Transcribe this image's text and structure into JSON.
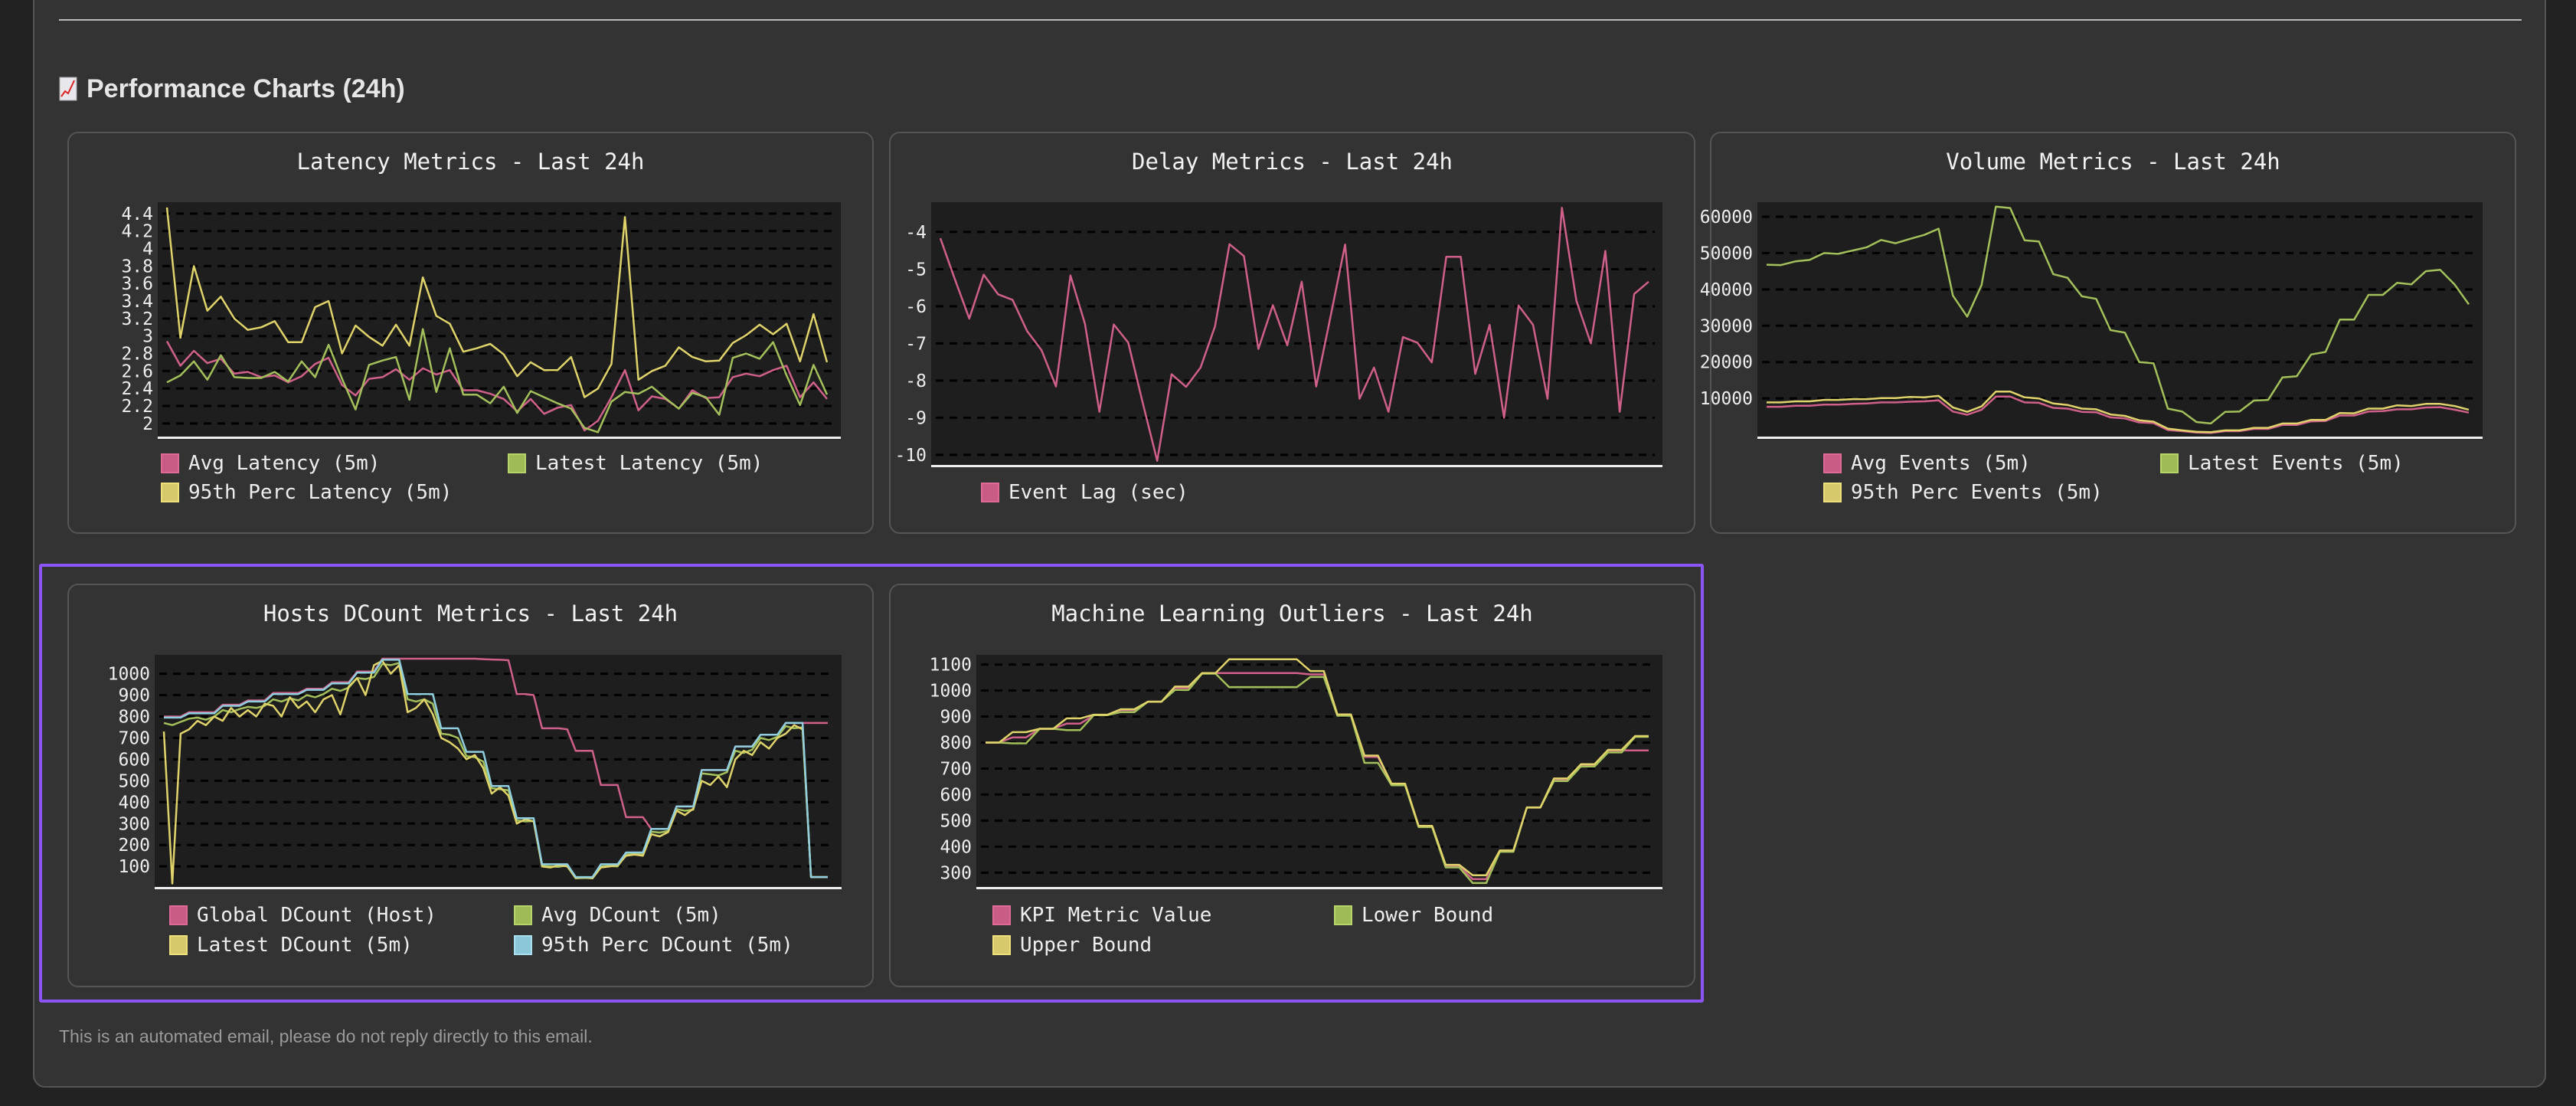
{
  "section": {
    "title": "Performance Charts (24h)",
    "icon": "chart-increasing-icon"
  },
  "footer": {
    "text": "This is an automated email, please do not reply directly to this email."
  },
  "colors": {
    "pink": "#d0608a",
    "green": "#a3c05a",
    "yellow": "#e0d36a",
    "blue": "#8fcfe0",
    "highlight": "#8b55f5"
  },
  "chart_data": [
    {
      "type": "line",
      "title": "Latency Metrics - Last 24h",
      "ylim": [
        1.85,
        4.53
      ],
      "yticks": [
        "2",
        "2.2",
        "2.4",
        "2.6",
        "2.8",
        "3",
        "3.2",
        "3.4",
        "3.6",
        "3.8",
        "4",
        "4.2",
        "4.4"
      ],
      "grid": true,
      "legend": "bottom",
      "series": [
        {
          "name": "Avg Latency (5m)",
          "color": "#d0608a",
          "values": [
            2.94,
            2.66,
            2.83,
            2.69,
            2.74,
            2.57,
            2.59,
            2.53,
            2.55,
            2.47,
            2.54,
            2.68,
            2.75,
            2.44,
            2.32,
            2.51,
            2.53,
            2.62,
            2.5,
            2.63,
            2.56,
            2.61,
            2.38,
            2.38,
            2.34,
            2.28,
            2.14,
            2.28,
            2.11,
            2.18,
            2.21,
            1.92,
            2.03,
            2.3,
            2.61,
            2.15,
            2.31,
            2.28,
            2.17,
            2.38,
            2.29,
            2.3,
            2.53,
            2.57,
            2.54,
            2.61,
            2.66,
            2.3,
            2.47,
            2.28
          ]
        },
        {
          "name": "Latest Latency (5m)",
          "color": "#a3c05a",
          "values": [
            2.47,
            2.55,
            2.71,
            2.5,
            2.78,
            2.53,
            2.52,
            2.52,
            2.59,
            2.48,
            2.71,
            2.53,
            2.9,
            2.51,
            2.16,
            2.67,
            2.72,
            2.76,
            2.27,
            3.08,
            2.36,
            2.86,
            2.33,
            2.33,
            2.23,
            2.42,
            2.12,
            2.37,
            2.3,
            2.23,
            2.17,
            1.95,
            1.9,
            2.25,
            2.36,
            2.34,
            2.42,
            2.29,
            2.17,
            2.35,
            2.3,
            2.1,
            2.75,
            2.8,
            2.74,
            2.93,
            2.55,
            2.21,
            2.67,
            2.33
          ]
        },
        {
          "name": "95th Perc Latency (5m)",
          "color": "#e0d36a",
          "values": [
            4.47,
            2.98,
            3.8,
            3.29,
            3.45,
            3.2,
            3.07,
            3.1,
            3.17,
            2.93,
            2.93,
            3.33,
            3.4,
            2.8,
            3.12,
            2.99,
            2.89,
            3.13,
            2.89,
            3.67,
            3.23,
            3.14,
            2.82,
            2.86,
            2.91,
            2.79,
            2.54,
            2.7,
            2.61,
            2.61,
            2.76,
            2.3,
            2.4,
            2.68,
            4.36,
            2.5,
            2.6,
            2.66,
            2.87,
            2.76,
            2.71,
            2.72,
            2.92,
            3.01,
            3.13,
            3.02,
            3.14,
            2.71,
            3.25,
            2.7
          ]
        }
      ]
    },
    {
      "type": "line",
      "title": "Delay Metrics - Last 24h",
      "ylim": [
        -10.27,
        -3.2
      ],
      "yticks": [
        "-10",
        "-9",
        "-8",
        "-7",
        "-6",
        "-5",
        "-4"
      ],
      "grid": true,
      "legend": "bottom",
      "series": [
        {
          "name": "Event Lag (sec)",
          "color": "#d0608a",
          "values": [
            -4.17,
            -5.27,
            -6.33,
            -5.15,
            -5.68,
            -5.83,
            -6.67,
            -7.18,
            -8.16,
            -5.17,
            -6.47,
            -8.84,
            -6.49,
            -6.98,
            -8.6,
            -10.16,
            -7.83,
            -8.17,
            -7.65,
            -6.54,
            -4.33,
            -4.65,
            -7.15,
            -5.97,
            -7.05,
            -5.34,
            -8.16,
            -6.26,
            -4.34,
            -8.49,
            -7.65,
            -8.84,
            -6.83,
            -6.98,
            -7.51,
            -4.67,
            -4.67,
            -7.82,
            -6.5,
            -9.0,
            -5.98,
            -6.5,
            -8.49,
            -3.35,
            -5.85,
            -7.0,
            -4.51,
            -8.84,
            -5.67,
            -5.34
          ]
        }
      ]
    },
    {
      "type": "line",
      "title": "Volume Metrics - Last 24h",
      "ylim": [
        -500,
        64000
      ],
      "yticks": [
        "10000",
        "20000",
        "30000",
        "40000",
        "50000",
        "60000"
      ],
      "grid": true,
      "legend": "bottom",
      "series": [
        {
          "name": "Avg Events (5m)",
          "color": "#d0608a",
          "values": [
            7700,
            7700,
            8000,
            8000,
            8300,
            8300,
            8500,
            8600,
            8900,
            8900,
            9100,
            9200,
            9500,
            6400,
            5500,
            6900,
            10500,
            10500,
            8900,
            8800,
            7400,
            7200,
            6300,
            6200,
            4800,
            4500,
            3400,
            3200,
            1300,
            1000,
            600,
            500,
            1000,
            1000,
            1600,
            1600,
            2700,
            2700,
            3700,
            3800,
            5300,
            5300,
            6400,
            6500,
            7000,
            7000,
            7500,
            7600,
            6900,
            6100
          ]
        },
        {
          "name": "Latest Events (5m)",
          "color": "#a3c05a",
          "values": [
            46800,
            46700,
            47700,
            48100,
            50000,
            49800,
            50700,
            51600,
            53600,
            52700,
            53900,
            55000,
            56700,
            38300,
            32500,
            41200,
            62800,
            62400,
            53500,
            53200,
            44200,
            43200,
            38100,
            37400,
            28800,
            28100,
            20000,
            19700,
            7200,
            6400,
            3500,
            3100,
            6300,
            6400,
            9400,
            9600,
            15800,
            16100,
            22100,
            22800,
            31700,
            31700,
            38500,
            38500,
            41800,
            41400,
            45000,
            45400,
            41400,
            35900
          ]
        },
        {
          "name": "95th Perc Events (5m)",
          "color": "#e0d36a",
          "values": [
            8900,
            8900,
            9200,
            9200,
            9600,
            9600,
            9800,
            9800,
            10100,
            10100,
            10400,
            10300,
            10700,
            7500,
            6300,
            7800,
            11900,
            11900,
            10300,
            10000,
            8600,
            8200,
            7200,
            7000,
            5600,
            5200,
            4000,
            3600,
            1700,
            1200,
            800,
            700,
            1200,
            1200,
            1900,
            1900,
            3100,
            3100,
            4100,
            4100,
            6000,
            5900,
            7200,
            7200,
            8100,
            7900,
            8500,
            8500,
            7900,
            6900
          ]
        }
      ]
    },
    {
      "type": "line",
      "title": "Hosts DCount Metrics - Last 24h",
      "ylim": [
        4,
        1088
      ],
      "yticks": [
        "100",
        "200",
        "300",
        "400",
        "500",
        "600",
        "700",
        "800",
        "900",
        "1000"
      ],
      "grid": true,
      "legend": "bottom",
      "series": [
        {
          "name": "Global DCount (Host)",
          "color": "#d0608a",
          "values": [
            800,
            800,
            800,
            820,
            820,
            820,
            820,
            855,
            855,
            855,
            875,
            875,
            875,
            910,
            910,
            910,
            910,
            930,
            930,
            930,
            960,
            960,
            960,
            1010,
            1010,
            1010,
            1070,
            1070,
            1070,
            1070,
            1070,
            1070,
            1070,
            1070,
            1070,
            1070,
            1070,
            1070,
            1068,
            1066,
            1065,
            1063,
            905,
            905,
            900,
            745,
            745,
            745,
            740,
            640,
            640,
            640,
            480,
            480,
            480,
            330,
            330,
            330,
            275,
            275,
            275,
            380,
            380,
            380,
            550,
            550,
            550,
            550,
            660,
            660,
            660,
            715,
            715,
            715,
            770,
            770,
            770,
            770,
            770,
            770
          ]
        },
        {
          "name": "Avg DCount (5m)",
          "color": "#a3c05a",
          "values": [
            770,
            760,
            775,
            790,
            795,
            785,
            800,
            830,
            820,
            835,
            845,
            840,
            850,
            880,
            870,
            885,
            875,
            900,
            890,
            905,
            930,
            920,
            935,
            980,
            975,
            985,
            1045,
            1040,
            1050,
            880,
            870,
            880,
            860,
            720,
            715,
            700,
            615,
            610,
            590,
            465,
            460,
            455,
            315,
            310,
            312,
            102,
            100,
            98,
            104,
            45,
            46,
            47,
            100,
            102,
            100,
            155,
            158,
            156,
            262,
            258,
            265,
            368,
            360,
            365,
            535,
            530,
            525,
            540,
            640,
            630,
            645,
            700,
            690,
            705,
            755,
            745,
            750,
            50,
            50,
            50
          ]
        },
        {
          "name": "Latest DCount (5m)",
          "color": "#e0d36a",
          "values": [
            730,
            20,
            720,
            740,
            780,
            760,
            800,
            780,
            840,
            800,
            830,
            800,
            860,
            850,
            800,
            890,
            840,
            870,
            820,
            880,
            900,
            810,
            940,
            980,
            900,
            1040,
            1060,
            1000,
            1040,
            820,
            840,
            880,
            810,
            700,
            680,
            650,
            600,
            620,
            560,
            440,
            470,
            430,
            300,
            320,
            310,
            100,
            95,
            105,
            100,
            45,
            48,
            44,
            95,
            100,
            105,
            150,
            155,
            150,
            250,
            240,
            260,
            360,
            340,
            370,
            500,
            480,
            520,
            470,
            600,
            640,
            620,
            680,
            650,
            700,
            720,
            760,
            740,
            50,
            50,
            50
          ]
        },
        {
          "name": "95th Perc DCount (5m)",
          "color": "#8fcfe0",
          "values": [
            795,
            795,
            795,
            815,
            815,
            815,
            815,
            850,
            850,
            850,
            870,
            870,
            870,
            905,
            905,
            905,
            905,
            925,
            925,
            925,
            955,
            955,
            955,
            1005,
            1005,
            1005,
            1065,
            1065,
            1065,
            905,
            905,
            905,
            905,
            745,
            745,
            745,
            635,
            635,
            635,
            475,
            475,
            475,
            325,
            325,
            325,
            110,
            110,
            110,
            110,
            50,
            50,
            50,
            110,
            110,
            110,
            165,
            165,
            165,
            275,
            275,
            275,
            380,
            380,
            380,
            550,
            550,
            550,
            550,
            660,
            660,
            660,
            715,
            715,
            715,
            770,
            770,
            770,
            50,
            50,
            50
          ]
        }
      ]
    },
    {
      "type": "line",
      "title": "Machine Learning Outliers - Last 24h",
      "ylim": [
        245,
        1137
      ],
      "yticks": [
        "300",
        "400",
        "500",
        "600",
        "700",
        "800",
        "900",
        "1000",
        "1100"
      ],
      "grid": true,
      "legend": "bottom",
      "series": [
        {
          "name": "KPI Metric Value",
          "color": "#d0608a",
          "values": [
            800,
            800,
            820,
            820,
            853,
            853,
            873,
            873,
            905,
            905,
            925,
            925,
            957,
            957,
            1010,
            1010,
            1067,
            1067,
            1067,
            1067,
            1067,
            1067,
            1067,
            1067,
            1062,
            1062,
            905,
            905,
            745,
            745,
            640,
            640,
            478,
            478,
            325,
            325,
            275,
            275,
            382,
            382,
            550,
            550,
            658,
            658,
            713,
            713,
            770,
            770,
            770,
            770
          ]
        },
        {
          "name": "Lower Bound",
          "color": "#a3c05a",
          "values": [
            800,
            800,
            797,
            797,
            853,
            853,
            848,
            848,
            905,
            905,
            917,
            917,
            957,
            957,
            1002,
            1002,
            1065,
            1065,
            1013,
            1013,
            1013,
            1013,
            1013,
            1013,
            1052,
            1052,
            903,
            903,
            722,
            722,
            636,
            636,
            475,
            475,
            320,
            320,
            260,
            260,
            380,
            380,
            550,
            550,
            652,
            652,
            708,
            708,
            762,
            762,
            822,
            822
          ]
        },
        {
          "name": "Upper Bound",
          "color": "#e0d36a",
          "values": [
            800,
            800,
            840,
            840,
            853,
            853,
            893,
            893,
            907,
            907,
            928,
            928,
            957,
            957,
            1015,
            1015,
            1067,
            1067,
            1120,
            1120,
            1120,
            1120,
            1120,
            1120,
            1075,
            1075,
            908,
            908,
            750,
            750,
            642,
            642,
            480,
            480,
            330,
            330,
            290,
            290,
            385,
            385,
            551,
            551,
            662,
            662,
            717,
            717,
            772,
            772,
            825,
            825
          ]
        }
      ]
    }
  ]
}
